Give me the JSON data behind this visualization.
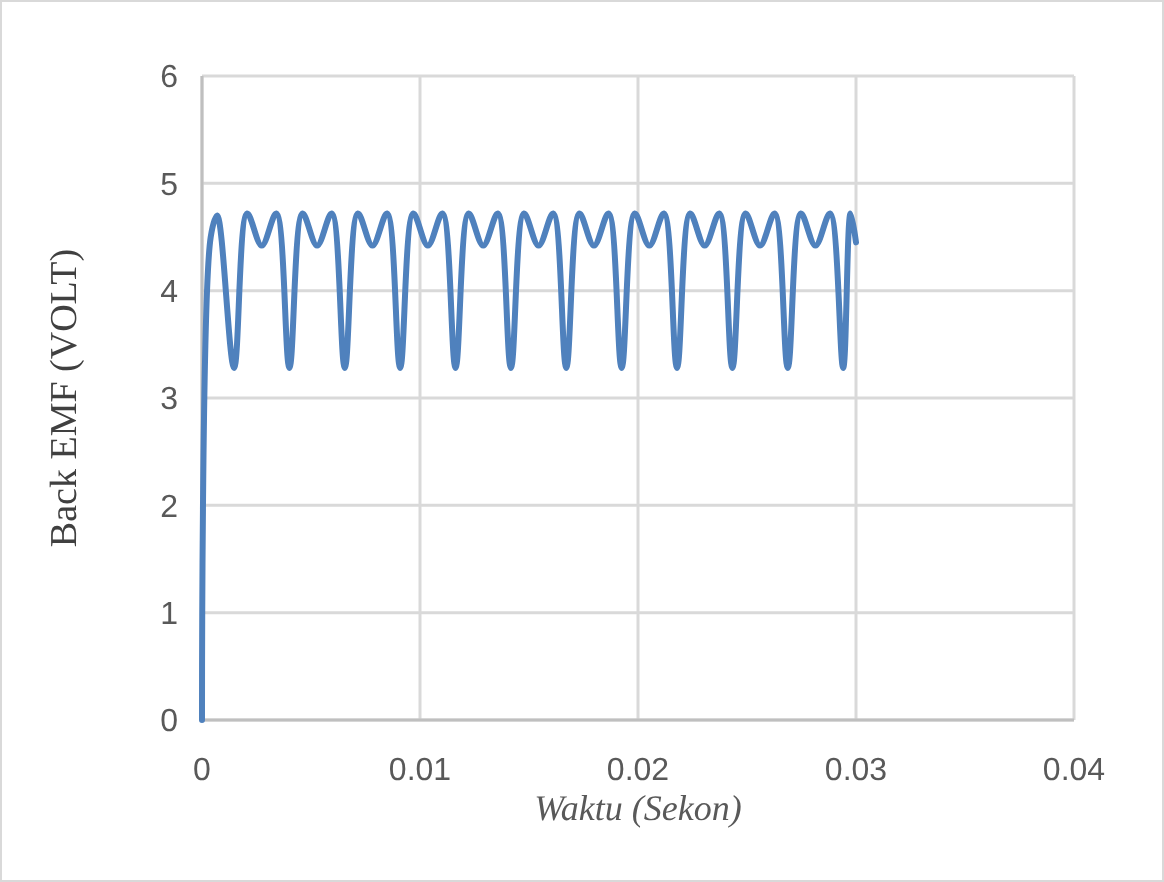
{
  "chart_data": {
    "type": "line",
    "xlabel": "Waktu (Sekon)",
    "ylabel": "Back EMF (VOLT)",
    "xlim": [
      0,
      0.04
    ],
    "xticks": [
      0,
      0.01,
      0.02,
      0.03,
      0.04
    ],
    "ylim": [
      0,
      6
    ],
    "yticks": [
      0,
      1,
      2,
      3,
      4,
      5,
      6
    ],
    "grid": true,
    "marker": "none",
    "line_style": "solid",
    "series": [
      {
        "color": "#4f81bd",
        "x": [
          0,
          0.0004,
          0.0007,
          0.00147,
          0.00207,
          0.00274,
          0.00341,
          0.00401,
          0.00461,
          0.00528,
          0.00595,
          0.00655,
          0.00715,
          0.00782,
          0.00849,
          0.00909,
          0.00969,
          0.01036,
          0.01103,
          0.01163,
          0.01223,
          0.0129,
          0.01357,
          0.01417,
          0.01477,
          0.01544,
          0.01611,
          0.01671,
          0.01731,
          0.01798,
          0.01865,
          0.01925,
          0.01985,
          0.02052,
          0.02119,
          0.02179,
          0.02239,
          0.02306,
          0.02373,
          0.02433,
          0.02493,
          0.0256,
          0.02627,
          0.02687,
          0.02747,
          0.02814,
          0.02881,
          0.02941,
          0.02975,
          0.03
        ],
        "values": [
          0,
          4.5,
          4.7,
          3.28,
          4.72,
          4.42,
          4.72,
          3.28,
          4.72,
          4.42,
          4.72,
          3.28,
          4.72,
          4.42,
          4.72,
          3.28,
          4.72,
          4.42,
          4.72,
          3.28,
          4.72,
          4.42,
          4.72,
          3.28,
          4.72,
          4.42,
          4.72,
          3.28,
          4.72,
          4.42,
          4.72,
          3.28,
          4.72,
          4.42,
          4.72,
          3.28,
          4.72,
          4.42,
          4.72,
          3.28,
          4.72,
          4.42,
          4.72,
          3.28,
          4.72,
          4.42,
          4.72,
          3.28,
          4.72,
          4.45
        ]
      }
    ]
  }
}
